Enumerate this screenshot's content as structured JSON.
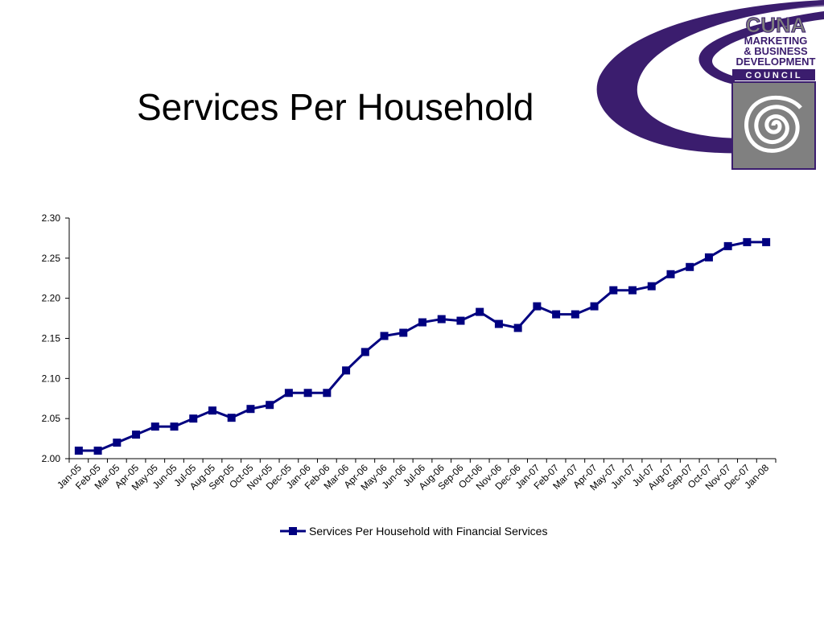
{
  "slide": {
    "title": "Services Per Household"
  },
  "logo": {
    "line1": "CUNA",
    "line2": "MARKETING",
    "line3": "& BUSINESS",
    "line4": "DEVELOPMENT",
    "line5": "COUNCIL",
    "purple": "#3b1d6e",
    "gray": "#808080"
  },
  "chart_data": {
    "type": "line",
    "title": "",
    "xlabel": "",
    "ylabel": "",
    "ylim": [
      2.0,
      2.3
    ],
    "yticks": [
      "2.00",
      "2.05",
      "2.10",
      "2.15",
      "2.20",
      "2.25",
      "2.30"
    ],
    "grid": false,
    "legend_position": "bottom",
    "color": "#000080",
    "categories": [
      "Jan-05",
      "Feb-05",
      "Mar-05",
      "Apr-05",
      "May-05",
      "Jun-05",
      "Jul-05",
      "Aug-05",
      "Sep-05",
      "Oct-05",
      "Nov-05",
      "Dec-05",
      "Jan-06",
      "Feb-06",
      "Mar-06",
      "Apr-06",
      "May-06",
      "Jun-06",
      "Jul-06",
      "Aug-06",
      "Sep-06",
      "Oct-06",
      "Nov-06",
      "Dec-06",
      "Jan-07",
      "Feb-07",
      "Mar-07",
      "Apr-07",
      "May-07",
      "Jun-07",
      "Jul-07",
      "Aug-07",
      "Sep-07",
      "Oct-07",
      "Nov-07",
      "Dec-07",
      "Jan-08"
    ],
    "series": [
      {
        "name": "Services Per Household with Financial Services",
        "values": [
          2.01,
          2.01,
          2.02,
          2.03,
          2.04,
          2.04,
          2.05,
          2.06,
          2.051,
          2.062,
          2.067,
          2.082,
          2.082,
          2.082,
          2.11,
          2.133,
          2.153,
          2.157,
          2.17,
          2.174,
          2.172,
          2.183,
          2.168,
          2.163,
          2.19,
          2.18,
          2.18,
          2.19,
          2.21,
          2.21,
          2.215,
          2.23,
          2.239,
          2.251,
          2.265,
          2.27,
          2.27
        ]
      }
    ]
  }
}
